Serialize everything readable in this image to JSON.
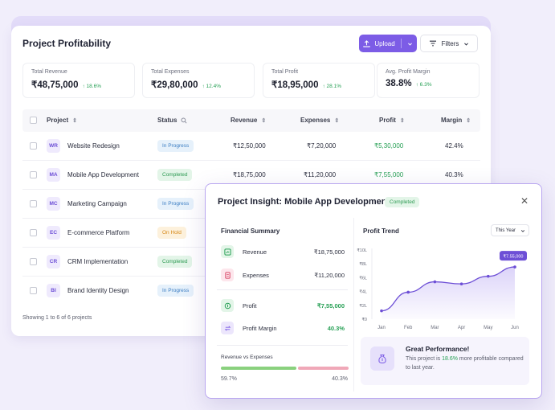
{
  "main": {
    "title": "Project Profitability",
    "upload_label": "Upload",
    "filters_label": "Filters",
    "stats": [
      {
        "label": "Total Revenue",
        "value": "₹48,75,000",
        "delta": "18.6%"
      },
      {
        "label": "Total Expenses",
        "value": "₹29,80,000",
        "delta": "12.4%"
      },
      {
        "label": "Total Profit",
        "value": "₹18,95,000",
        "delta": "28.1%"
      },
      {
        "label": "Avg. Profit Margin",
        "value": "38.8%",
        "delta": "6.3%"
      }
    ],
    "columns": {
      "project": "Project",
      "status": "Status",
      "revenue": "Revenue",
      "expenses": "Expenses",
      "profit": "Profit",
      "margin": "Margin"
    },
    "rows": [
      {
        "initials": "WR",
        "name": "Website Redesign",
        "status": "In Progress",
        "status_kind": "progress",
        "revenue": "₹12,50,000",
        "expenses": "₹7,20,000",
        "profit": "₹5,30,000",
        "margin": "42.4%"
      },
      {
        "initials": "MA",
        "name": "Mobile App Development",
        "status": "Completed",
        "status_kind": "completed",
        "revenue": "₹18,75,000",
        "expenses": "₹11,20,000",
        "profit": "₹7,55,000",
        "margin": "40.3%"
      },
      {
        "initials": "MC",
        "name": "Marketing Campaign",
        "status": "In Progress",
        "status_kind": "progress"
      },
      {
        "initials": "EC",
        "name": "E-commerce Platform",
        "status": "On Hold",
        "status_kind": "hold"
      },
      {
        "initials": "CR",
        "name": "CRM Implementation",
        "status": "Completed",
        "status_kind": "completed"
      },
      {
        "initials": "BI",
        "name": "Brand Identity Design",
        "status": "In Progress",
        "status_kind": "progress"
      }
    ],
    "footer": "Showing 1 to 6 of 6 projects"
  },
  "modal": {
    "title": "Project Insight: Mobile App Development",
    "status_badge": "Completed",
    "financial_summary_title": "Financial Summary",
    "financial": {
      "revenue_label": "Revenue",
      "revenue_value": "₹18,75,000",
      "expenses_label": "Expenses",
      "expenses_value": "₹11,20,000",
      "profit_label": "Profit",
      "profit_value": "₹7,55,000",
      "margin_label": "Profit Margin",
      "margin_value": "40.3%"
    },
    "rve_label": "Revenue vs Expenses",
    "rve_left_pct": "59.7%",
    "rve_right_pct": "40.3%",
    "rve_left_fraction": 0.597,
    "profit_trend_title": "Profit Trend",
    "period_select": "This Year",
    "great_title": "Great Performance!",
    "great_text_pre": "This project is ",
    "great_text_hl": "18.6%",
    "great_text_post": " more profitable compared to last year."
  },
  "colors": {
    "accent": "#7c5ce6",
    "positive": "#27a055",
    "expense": "#f0a8b8"
  },
  "chart_data": {
    "type": "area",
    "categories": [
      "Jan",
      "Feb",
      "Mar",
      "Apr",
      "May",
      "Jun"
    ],
    "series": [
      {
        "values": [
          1.2,
          3.9,
          5.4,
          5.1,
          6.2,
          7.55
        ]
      }
    ],
    "y_ticks": [
      "₹0",
      "₹2L",
      "₹4L",
      "₹6L",
      "₹8L",
      "₹10L"
    ],
    "ylim": [
      0,
      10
    ],
    "callout": "₹7.55,000",
    "grid": false
  }
}
